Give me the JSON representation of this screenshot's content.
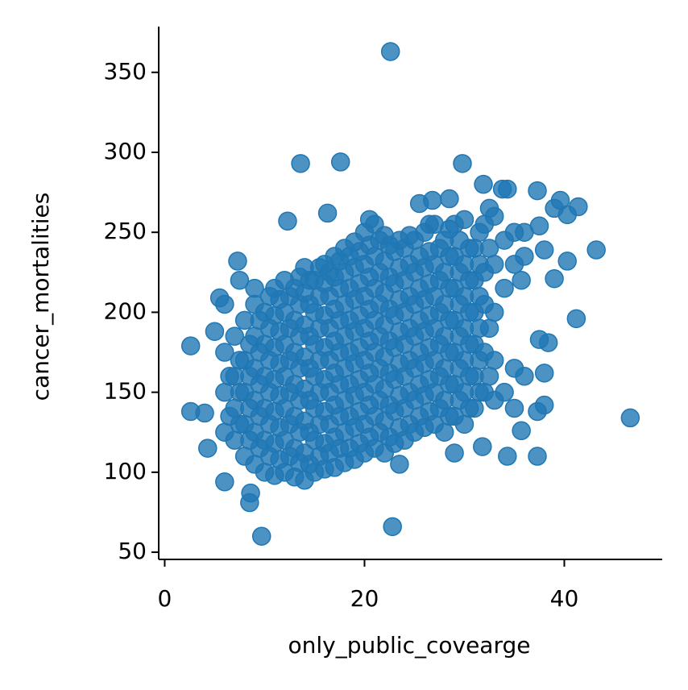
{
  "chart_data": {
    "type": "scatter",
    "xlabel": "only_public_covearge",
    "ylabel": "cancer_mortalities",
    "color": "#1f77b4",
    "xlim": [
      -0.6,
      49.8
    ],
    "ylim": [
      45.5,
      378.6
    ],
    "xticks": [
      0,
      20,
      40
    ],
    "yticks": [
      50,
      100,
      150,
      200,
      250,
      300,
      350
    ],
    "x": [
      2.6,
      2.6,
      4,
      4.3,
      5,
      5.5,
      6,
      6,
      6,
      6,
      6,
      6.5,
      6.5,
      7,
      7,
      7,
      7,
      7.3,
      7.5,
      7.5,
      7.5,
      7.5,
      8,
      8,
      8,
      8,
      8,
      8.5,
      8.5,
      8.5,
      8.5,
      8.5,
      8.6,
      9,
      9,
      9,
      9,
      9,
      9,
      9,
      9.5,
      9.5,
      9.5,
      9.5,
      9.5,
      9.7,
      10,
      10,
      10,
      10,
      10,
      10,
      10.5,
      10.5,
      10.5,
      10.5,
      10.5,
      10.5,
      11,
      11,
      11,
      11,
      11,
      11,
      11,
      11.5,
      11.5,
      11.5,
      11.5,
      11.5,
      11.5,
      12,
      12,
      12,
      12,
      12,
      12,
      12,
      12.3,
      12.5,
      12.5,
      12.5,
      12.5,
      12.5,
      12.5,
      13,
      13,
      13,
      13,
      13,
      13,
      13,
      13.5,
      13.5,
      13.5,
      13.5,
      13.5,
      13.5,
      13.5,
      13.6,
      14,
      14,
      14,
      14,
      14,
      14,
      14,
      14,
      14.5,
      14.5,
      14.5,
      14.5,
      14.5,
      14.5,
      14.5,
      15,
      15,
      15,
      15,
      15,
      15,
      15,
      15.5,
      15.5,
      15.5,
      15.5,
      15.5,
      15.5,
      15.5,
      16,
      16,
      16,
      16,
      16,
      16,
      16,
      16,
      16.3,
      16.5,
      16.5,
      16.5,
      16.5,
      16.5,
      16.5,
      16.5,
      17,
      17,
      17,
      17,
      17,
      17,
      17,
      17,
      17.5,
      17.5,
      17.5,
      17.5,
      17.5,
      17.5,
      17.5,
      17.6,
      18,
      18,
      18,
      18,
      18,
      18,
      18,
      18,
      18.5,
      18.5,
      18.5,
      18.5,
      18.5,
      18.5,
      18.5,
      19,
      19,
      19,
      19,
      19,
      19,
      19,
      19,
      19.5,
      19.5,
      19.5,
      19.5,
      19.5,
      19.5,
      19.5,
      20,
      20,
      20,
      20,
      20,
      20,
      20,
      20,
      20.5,
      20.5,
      20.5,
      20.5,
      20.5,
      20.5,
      20.5,
      20.5,
      21,
      21,
      21,
      21,
      21,
      21,
      21,
      21,
      21.5,
      21.5,
      21.5,
      21.5,
      21.5,
      21.5,
      21.5,
      22,
      22,
      22,
      22,
      22,
      22,
      22,
      22,
      22.5,
      22.5,
      22.5,
      22.5,
      22.5,
      22.5,
      22.5,
      22.6,
      22.8,
      23,
      23,
      23,
      23,
      23,
      23,
      23,
      23.5,
      23.5,
      23.5,
      23.5,
      23.5,
      23.5,
      23.5,
      23.5,
      24,
      24,
      24,
      24,
      24,
      24,
      24,
      24.5,
      24.5,
      24.5,
      24.5,
      24.5,
      24.5,
      24.5,
      25,
      25,
      25,
      25,
      25,
      25,
      25,
      25.5,
      25.5,
      25.5,
      25.5,
      25.5,
      25.5,
      25.5,
      26,
      26,
      26,
      26,
      26,
      26,
      26,
      26.5,
      26.5,
      26.5,
      26.5,
      26.5,
      26.5,
      26.5,
      26.8,
      27,
      27,
      27,
      27,
      27,
      27,
      27,
      27.5,
      27.5,
      27.5,
      27.5,
      27.5,
      27.5,
      28,
      28,
      28,
      28,
      28,
      28,
      28,
      28.5,
      28.5,
      28.5,
      28.5,
      28.5,
      28.5,
      28.5,
      28.5,
      29,
      29,
      29,
      29,
      29,
      29,
      29,
      29,
      29.5,
      29.5,
      29.5,
      29.5,
      29.5,
      29.5,
      29.8,
      30,
      30,
      30,
      30,
      30,
      30,
      30,
      30.5,
      30.5,
      30.5,
      30.5,
      30.5,
      30.5,
      31,
      31,
      31,
      31,
      31,
      31,
      31.5,
      31.5,
      31.5,
      31.5,
      31.5,
      31.5,
      31.8,
      31.9,
      32,
      32,
      32,
      32,
      32,
      32.5,
      32.5,
      32.5,
      32.5,
      33,
      33,
      33,
      33,
      33,
      33.8,
      34,
      34,
      34,
      34.3,
      34.3,
      35,
      35,
      35,
      35,
      35.7,
      35.7,
      36,
      36,
      36,
      37.3,
      37.3,
      37.3,
      37.5,
      37.5,
      38,
      38,
      38,
      38.4,
      39,
      39,
      39.6,
      40.3,
      40.3,
      41.2,
      41.4,
      43.2,
      46.6
    ],
    "values": [
      179,
      138,
      137,
      115,
      188,
      209,
      94,
      205,
      125,
      150,
      175,
      135,
      160,
      120,
      140,
      160,
      185,
      232,
      220,
      130,
      150,
      170,
      110,
      130,
      150,
      170,
      195,
      81,
      120,
      140,
      160,
      180,
      87,
      215,
      105,
      125,
      145,
      165,
      185,
      205,
      115,
      135,
      155,
      175,
      195,
      60,
      100,
      120,
      140,
      160,
      180,
      200,
      110,
      130,
      150,
      170,
      190,
      210,
      98,
      118,
      138,
      158,
      178,
      198,
      215,
      108,
      128,
      148,
      168,
      188,
      208,
      100,
      120,
      140,
      160,
      180,
      200,
      220,
      257,
      110,
      130,
      150,
      170,
      190,
      210,
      97,
      115,
      135,
      155,
      175,
      195,
      215,
      106,
      125,
      145,
      165,
      185,
      205,
      222,
      293,
      95,
      112,
      132,
      152,
      172,
      192,
      212,
      228,
      105,
      125,
      145,
      165,
      185,
      205,
      220,
      100,
      120,
      140,
      160,
      180,
      200,
      220,
      110,
      130,
      150,
      170,
      190,
      210,
      228,
      102,
      118,
      138,
      158,
      178,
      198,
      218,
      230,
      262,
      112,
      130,
      150,
      170,
      190,
      210,
      225,
      103,
      122,
      142,
      162,
      182,
      202,
      222,
      235,
      115,
      135,
      155,
      175,
      195,
      215,
      232,
      294,
      106,
      125,
      145,
      165,
      185,
      205,
      225,
      240,
      115,
      135,
      155,
      175,
      195,
      215,
      235,
      108,
      128,
      148,
      168,
      188,
      208,
      228,
      244,
      118,
      138,
      158,
      178,
      198,
      218,
      238,
      112,
      130,
      150,
      170,
      190,
      210,
      230,
      250,
      122,
      142,
      162,
      182,
      202,
      222,
      242,
      258,
      115,
      135,
      155,
      175,
      195,
      215,
      235,
      255,
      125,
      145,
      165,
      185,
      205,
      225,
      245,
      112,
      132,
      152,
      172,
      192,
      212,
      232,
      248,
      122,
      142,
      162,
      182,
      202,
      222,
      242,
      363,
      66,
      118,
      138,
      158,
      178,
      198,
      218,
      238,
      105,
      128,
      148,
      168,
      188,
      208,
      228,
      245,
      120,
      140,
      160,
      180,
      200,
      220,
      240,
      130,
      150,
      170,
      190,
      210,
      230,
      248,
      125,
      145,
      165,
      185,
      205,
      225,
      245,
      268,
      135,
      155,
      175,
      195,
      215,
      235,
      128,
      148,
      168,
      188,
      208,
      228,
      250,
      138,
      158,
      178,
      198,
      218,
      238,
      255,
      270,
      130,
      150,
      170,
      190,
      210,
      230,
      255,
      140,
      160,
      180,
      200,
      220,
      240,
      125,
      145,
      165,
      185,
      205,
      225,
      245,
      271,
      135,
      155,
      175,
      195,
      215,
      235,
      252,
      112,
      135,
      155,
      175,
      195,
      215,
      235,
      255,
      145,
      165,
      185,
      205,
      225,
      245,
      293,
      130,
      150,
      170,
      190,
      210,
      230,
      258,
      140,
      160,
      180,
      200,
      220,
      240,
      140,
      160,
      180,
      200,
      220,
      240,
      150,
      170,
      190,
      210,
      230,
      250,
      116,
      280,
      150,
      175,
      205,
      225,
      255,
      160,
      190,
      240,
      265,
      145,
      170,
      200,
      230,
      260,
      277,
      150,
      215,
      245,
      277,
      110,
      140,
      165,
      230,
      250,
      126,
      220,
      160,
      235,
      250,
      276,
      110,
      138,
      254,
      183,
      162,
      239,
      142,
      181,
      265,
      221,
      270,
      261,
      232,
      196,
      266,
      239,
      134
    ]
  }
}
